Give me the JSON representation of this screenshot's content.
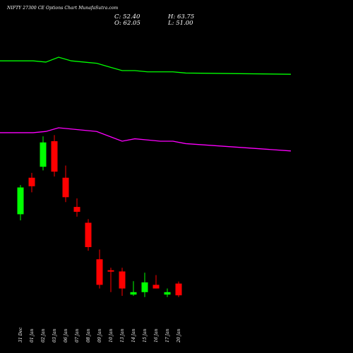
{
  "header": {
    "title": "NIFTY 27300  CE Options  Chart MunafaSutra.com"
  },
  "ohlc": {
    "close": "C: 52.40",
    "open": "O: 62.05",
    "high": "H: 63.75",
    "low": "L: 51.00"
  },
  "colors": {
    "background": "#000000",
    "up_candle": "#00ff00",
    "down_candle": "#ff0000",
    "green_line": "#00ff00",
    "purple_line": "#ff00ff",
    "text": "#ffffff"
  },
  "chart_data": {
    "type": "candlestick",
    "categories": [
      "31 Dec",
      "01 Jan",
      "02 Jan",
      "03 Jan",
      "06 Jan",
      "07 Jan",
      "08 Jan",
      "09 Jan",
      "10 Jan",
      "13 Jan",
      "14 Jan",
      "15 Jan",
      "16 Jan",
      "17 Jan",
      "20 Jan"
    ],
    "candles": [
      {
        "date": "31 Dec",
        "open": 119.0,
        "high": 143.0,
        "low": 114.0,
        "close": 141.0
      },
      {
        "date": "01 Jan",
        "open": 149.0,
        "high": 153.0,
        "low": 137.0,
        "close": 142.0
      },
      {
        "date": "02 Jan",
        "open": 158.0,
        "high": 183.0,
        "low": 155.0,
        "close": 178.0
      },
      {
        "date": "03 Jan",
        "open": 179.0,
        "high": 184.0,
        "low": 150.0,
        "close": 154.0
      },
      {
        "date": "06 Jan",
        "open": 149.0,
        "high": 159.0,
        "low": 129.0,
        "close": 133.0
      },
      {
        "date": "07 Jan",
        "open": 125.0,
        "high": 132.0,
        "low": 117.0,
        "close": 121.0
      },
      {
        "date": "08 Jan",
        "open": 112.0,
        "high": 115.0,
        "low": 89.0,
        "close": 92.0
      },
      {
        "date": "09 Jan",
        "open": 82.0,
        "high": 90.0,
        "low": 58.0,
        "close": 61.0
      },
      {
        "date": "10 Jan",
        "open": 73.0,
        "high": 75.0,
        "low": 55.0,
        "close": 72.0
      },
      {
        "date": "13 Jan",
        "open": 72.0,
        "high": 75.0,
        "low": 52.0,
        "close": 58.0
      },
      {
        "date": "14 Jan",
        "open": 53.0,
        "high": 64.0,
        "low": 52.0,
        "close": 55.0
      },
      {
        "date": "15 Jan",
        "open": 55.0,
        "high": 71.0,
        "low": 51.0,
        "close": 63.0
      },
      {
        "date": "16 Jan",
        "open": 61.0,
        "high": 69.0,
        "low": 58.0,
        "close": 58.0
      },
      {
        "date": "17 Jan",
        "open": 53.0,
        "high": 58.0,
        "low": 51.0,
        "close": 55.0
      },
      {
        "date": "20 Jan",
        "open": 62.05,
        "high": 63.75,
        "low": 51.0,
        "close": 52.4
      }
    ],
    "series": [
      {
        "color": "#00ff00",
        "x": [
          0,
          1,
          2,
          3,
          4,
          5,
          6,
          7,
          8,
          9,
          10,
          11,
          12,
          13,
          14
        ],
        "values": [
          245.0,
          245.0,
          244.0,
          248.0,
          245.0,
          244.0,
          243.0,
          240.0,
          237.0,
          237.0,
          236.0,
          236.0,
          236.0,
          235.0,
          234.0
        ]
      },
      {
        "color": "#ff00ff",
        "x": [
          0,
          1,
          2,
          3,
          4,
          5,
          6,
          7,
          8,
          9,
          10,
          11,
          12,
          13,
          14
        ],
        "values": [
          186.0,
          186.0,
          187.0,
          190.0,
          189.0,
          188.0,
          187.0,
          183.0,
          179.0,
          181.0,
          180.0,
          179.0,
          179.0,
          177.0,
          171.0
        ]
      }
    ],
    "ylim": [
      34,
      266
    ],
    "grid": false
  }
}
